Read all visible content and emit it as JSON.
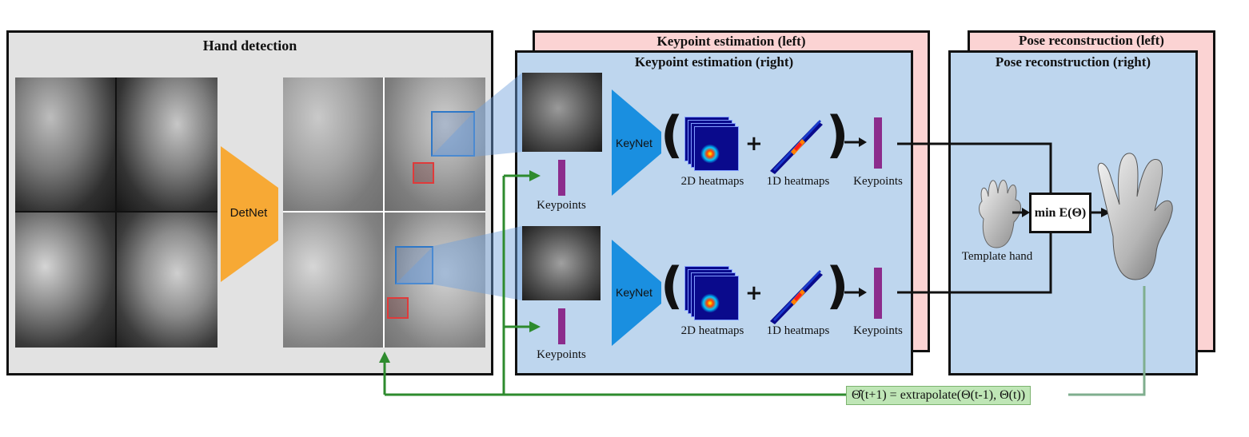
{
  "hand_detection": {
    "title": "Hand detection",
    "detnet_label": "DetNet"
  },
  "keypoint_estimation": {
    "back_title": "Keypoint estimation (left)",
    "front_title": "Keypoint estimation (right)",
    "keynet_label": "KeyNet",
    "heatmaps_2d_label": "2D heatmaps",
    "heatmaps_1d_label": "1D heatmaps",
    "keypoints_label": "Keypoints",
    "plus": "+"
  },
  "pose_reconstruction": {
    "back_title": "Pose reconstruction (left)",
    "front_title": "Pose reconstruction (right)",
    "template_label": "Template hand",
    "min_energy_label": "min E(Θ)"
  },
  "feedback": {
    "formula": "Θ̂(t+1) = extrapolate(Θ(t-1), Θ(t))"
  },
  "colors": {
    "gray_panel": "#e2e2e2",
    "blue_panel": "#bed6ee",
    "pink_panel": "#fbd3d3",
    "detnet": "#f7a935",
    "keynet": "#1a8fe0",
    "keypoints_bar": "#8c2c8c",
    "feedback_green": "#2e8b2e",
    "formula_bg": "#bfe6b6"
  }
}
